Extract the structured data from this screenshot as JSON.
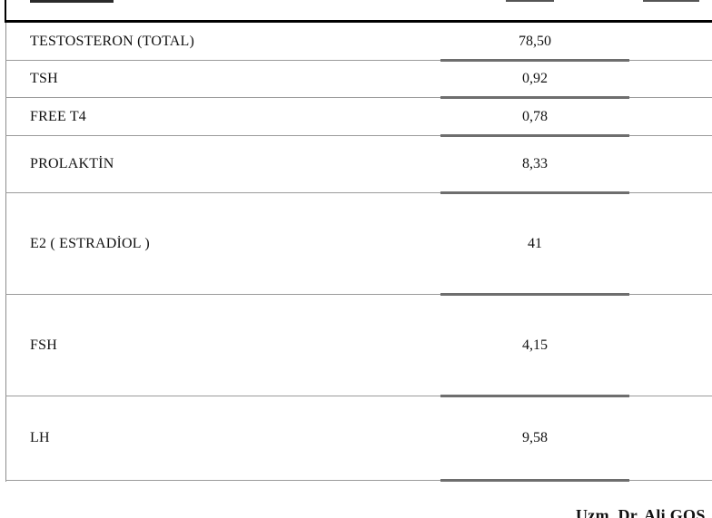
{
  "document": {
    "rows": [
      {
        "name": "TESTOSTERON (TOTAL)",
        "value": "78,50"
      },
      {
        "name": "TSH",
        "value": "0,92"
      },
      {
        "name": "FREE T4",
        "value": "0,78"
      },
      {
        "name": "PROLAKTİN",
        "value": "8,33"
      },
      {
        "name": "E2 ( ESTRADİOL )",
        "value": "41"
      },
      {
        "name": "FSH",
        "value": "4,15"
      },
      {
        "name": "LH",
        "value": "9,58"
      }
    ],
    "signature": "Uzm. Dr. Ali GOS"
  },
  "colors": {
    "thick_border": "#000000",
    "row_separator": "#9b9b9b",
    "value_underline": "#6e6e6e",
    "text": "#111111",
    "background": "#ffffff"
  }
}
